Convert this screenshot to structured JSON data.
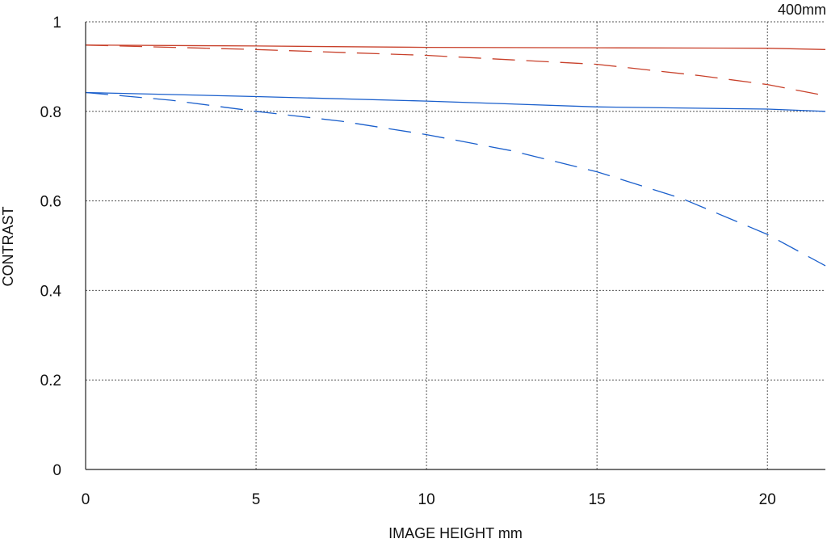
{
  "chart_data": {
    "type": "line",
    "title": "400mm",
    "xlabel": "IMAGE HEIGHT  mm",
    "ylabel": "CONTRAST",
    "xlim": [
      0,
      21.7
    ],
    "ylim": [
      0,
      1
    ],
    "xticks": [
      0,
      5,
      10,
      15,
      20
    ],
    "xtick_labels": [
      "0",
      "5",
      "10",
      "15",
      "20"
    ],
    "yticks": [
      0,
      0.2,
      0.4,
      0.6,
      0.8,
      1
    ],
    "ytick_labels": [
      "0",
      "0.2",
      "0.4",
      "0.6",
      "0.8",
      "1"
    ],
    "grid": true,
    "legend": "none",
    "series": [
      {
        "color": "#c8402a",
        "style": "solid",
        "x": [
          0,
          5,
          10,
          15,
          20,
          21.7
        ],
        "y": [
          0.948,
          0.946,
          0.943,
          0.942,
          0.941,
          0.938
        ]
      },
      {
        "color": "#c8402a",
        "style": "dashed",
        "x": [
          0,
          5,
          10,
          15,
          18,
          20,
          21.7
        ],
        "y": [
          0.948,
          0.938,
          0.925,
          0.905,
          0.88,
          0.86,
          0.835
        ]
      },
      {
        "color": "#1a5fcc",
        "style": "solid",
        "x": [
          0,
          5,
          10,
          15,
          20,
          21.7
        ],
        "y": [
          0.842,
          0.833,
          0.823,
          0.81,
          0.805,
          0.8
        ]
      },
      {
        "color": "#1a5fcc",
        "style": "dashed",
        "x": [
          0,
          2.5,
          5,
          7.5,
          10,
          12.5,
          15,
          17.5,
          20,
          21.7
        ],
        "y": [
          0.842,
          0.825,
          0.8,
          0.778,
          0.748,
          0.712,
          0.665,
          0.605,
          0.525,
          0.455
        ]
      }
    ]
  }
}
